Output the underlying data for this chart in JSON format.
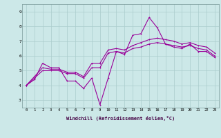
{
  "xlabel": "Windchill (Refroidissement éolien,°C)",
  "x": [
    0,
    1,
    2,
    3,
    4,
    5,
    6,
    7,
    8,
    9,
    10,
    11,
    12,
    13,
    14,
    15,
    16,
    17,
    18,
    19,
    20,
    21,
    22,
    23
  ],
  "line1": [
    4.0,
    4.4,
    5.5,
    5.2,
    5.2,
    4.3,
    4.3,
    3.8,
    4.5,
    2.7,
    4.5,
    6.3,
    6.1,
    7.4,
    7.5,
    8.6,
    7.9,
    6.8,
    6.6,
    6.5,
    6.8,
    6.3,
    6.3,
    5.9
  ],
  "line2": [
    4.0,
    4.5,
    5.0,
    5.0,
    5.0,
    4.8,
    4.8,
    4.5,
    5.2,
    5.2,
    6.2,
    6.3,
    6.2,
    6.5,
    6.6,
    6.8,
    6.9,
    6.8,
    6.7,
    6.6,
    6.7,
    6.5,
    6.4,
    6.0
  ],
  "line3": [
    4.0,
    4.6,
    5.2,
    5.1,
    5.1,
    4.9,
    4.9,
    4.6,
    5.5,
    5.5,
    6.4,
    6.5,
    6.4,
    6.7,
    6.9,
    7.1,
    7.2,
    7.1,
    7.0,
    6.8,
    6.9,
    6.7,
    6.6,
    6.2
  ],
  "line_color": "#990099",
  "bg_color": "#cce8e8",
  "grid_color": "#aacccc",
  "ylim": [
    2.5,
    9.5
  ],
  "yticks": [
    3,
    4,
    5,
    6,
    7,
    8,
    9
  ],
  "xlim": [
    -0.5,
    23.5
  ],
  "figwidth": 3.2,
  "figheight": 2.0,
  "dpi": 100
}
